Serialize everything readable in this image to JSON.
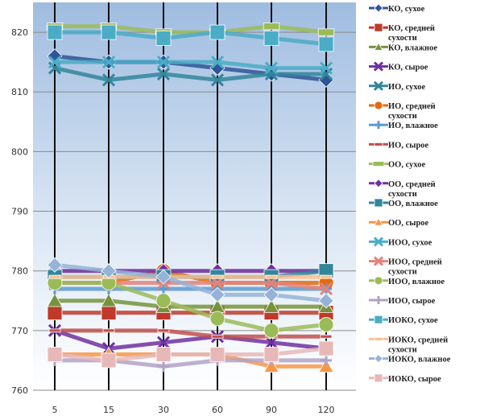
{
  "chart_data": {
    "type": "line",
    "title": "",
    "xlabel": "",
    "ylabel": "",
    "categories": [
      "5",
      "15",
      "30",
      "60",
      "90",
      "120"
    ],
    "yticks": [
      "760",
      "770",
      "780",
      "790",
      "800",
      "810",
      "820"
    ],
    "ylim": [
      760,
      825
    ],
    "grid": true,
    "legend_position": "right",
    "series": [
      {
        "name": "КО, сухое",
        "color": "#2f5597",
        "marker": "diamond",
        "values": [
          816,
          815,
          815,
          814,
          813,
          812
        ]
      },
      {
        "name": "КО, средней сухости",
        "color": "#c0392b",
        "marker": "square",
        "values": [
          773,
          773,
          773,
          773,
          773,
          773
        ]
      },
      {
        "name": "КО, влажное",
        "color": "#76933c",
        "marker": "triangle",
        "values": [
          775,
          775,
          774,
          774,
          774,
          774
        ]
      },
      {
        "name": "КО, сырое",
        "color": "#7030a0",
        "marker": "x",
        "values": [
          770,
          767,
          768,
          769,
          768,
          767
        ]
      },
      {
        "name": "ИО, сухое",
        "color": "#31869b",
        "marker": "x",
        "values": [
          814,
          812,
          813,
          812,
          813,
          813
        ]
      },
      {
        "name": "ИО, средней сухости",
        "color": "#e26b0a",
        "marker": "circle",
        "values": [
          778,
          778,
          780,
          778,
          778,
          778
        ]
      },
      {
        "name": "ИО, влажное",
        "color": "#5b9bd5",
        "marker": "plus",
        "values": [
          777,
          777,
          777,
          777,
          777,
          777
        ]
      },
      {
        "name": "ИО, сырое",
        "color": "#c0504d",
        "marker": "dash",
        "values": [
          770,
          770,
          770,
          769,
          769,
          769
        ]
      },
      {
        "name": "ОО, сухое",
        "color": "#9bbb59",
        "marker": "rect",
        "values": [
          821,
          821,
          820,
          820,
          821,
          820
        ]
      },
      {
        "name": "ОО, средней сухости",
        "color": "#7030a0",
        "marker": "diamond",
        "values": [
          780,
          780,
          780,
          780,
          780,
          780
        ]
      },
      {
        "name": "ОО, влажное",
        "color": "#31869b",
        "marker": "square",
        "values": [
          779,
          779,
          779,
          779,
          779,
          780
        ]
      },
      {
        "name": "ОО, сырое",
        "color": "#f79646",
        "marker": "triangle",
        "values": [
          766,
          766,
          766,
          766,
          764,
          764
        ]
      },
      {
        "name": "ИОО, сухое",
        "color": "#4bacc6",
        "marker": "x",
        "values": [
          815,
          815,
          815,
          815,
          814,
          814
        ]
      },
      {
        "name": "ИОО, средней сухости",
        "color": "#e6827a",
        "marker": "x",
        "values": [
          778,
          778,
          778,
          778,
          778,
          777
        ]
      },
      {
        "name": "ИОО, влажное",
        "color": "#9bbb59",
        "marker": "circle",
        "values": [
          778,
          778,
          775,
          772,
          770,
          771
        ]
      },
      {
        "name": "ИОО, сырое",
        "color": "#b3a2c7",
        "marker": "plus",
        "values": [
          765,
          765,
          764,
          765,
          765,
          765
        ]
      },
      {
        "name": "ИОКО, сухое",
        "color": "#4bacc6",
        "marker": "square",
        "values": [
          820,
          820,
          819,
          820,
          819,
          818
        ]
      },
      {
        "name": "ИОКО, средней сухости",
        "color": "#fac090",
        "marker": "dash",
        "values": [
          779,
          779,
          779,
          779,
          779,
          779
        ]
      },
      {
        "name": "ИОКО, влажное",
        "color": "#95b3d7",
        "marker": "diamond",
        "values": [
          781,
          780,
          779,
          776,
          776,
          775
        ]
      },
      {
        "name": "ИОКО, сырое",
        "color": "#e6b9b8",
        "marker": "square",
        "values": [
          766,
          765,
          766,
          766,
          766,
          767
        ]
      }
    ]
  }
}
